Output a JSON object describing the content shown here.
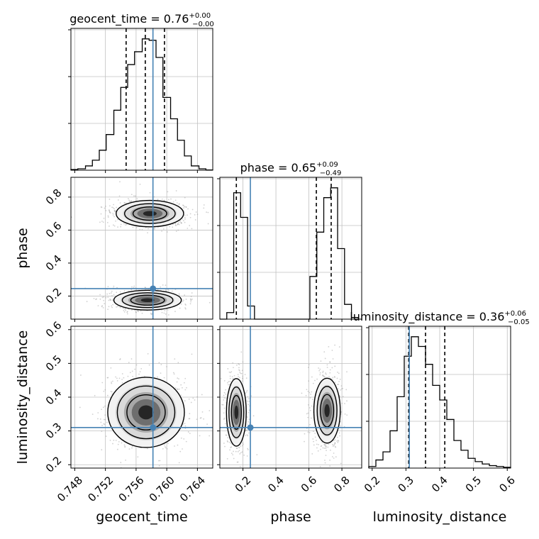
{
  "chart_data": {
    "type": "corner",
    "parameters": [
      "geocent_time",
      "phase",
      "luminosity_distance"
    ],
    "truths": {
      "geocent_time": 0.7582,
      "phase": 0.245,
      "luminosity_distance": 0.31
    },
    "colors": {
      "truth": "#4682b4",
      "hist": "#000000",
      "grid": "#c0c0c0",
      "quantile": "#000000"
    },
    "grid": true,
    "diagonal": [
      {
        "parameter": "geocent_time",
        "title": {
          "prefix": "geocent_time = 0.76",
          "plus": "+0.00",
          "minus": "−0.00"
        },
        "xlim": [
          0.7475,
          0.766
        ],
        "quantiles": [
          0.7547,
          0.7572,
          0.7597
        ],
        "bin_edges": [
          0.7475,
          0.7484,
          0.7494,
          0.7503,
          0.7512,
          0.7521,
          0.7531,
          0.754,
          0.7549,
          0.7558,
          0.7568,
          0.7577,
          0.7586,
          0.7595,
          0.7605,
          0.7614,
          0.7623,
          0.7632,
          0.7642,
          0.7651,
          0.766
        ],
        "counts": [
          0.5,
          1.0,
          3.0,
          7.0,
          14.0,
          25.0,
          42.0,
          58.0,
          74.0,
          83.0,
          92.0,
          91.0,
          79.0,
          51.0,
          36.0,
          21.0,
          10.0,
          3.0,
          1.0,
          0.2
        ]
      },
      {
        "parameter": "phase",
        "title": {
          "prefix": "phase = 0.65",
          "plus": "+0.09",
          "minus": "−0.49"
        },
        "xlim": [
          0.06,
          0.9
        ],
        "quantiles": [
          0.16,
          0.645,
          0.735
        ],
        "bin_edges": [
          0.06,
          0.102,
          0.144,
          0.186,
          0.228,
          0.27,
          0.312,
          0.354,
          0.396,
          0.438,
          0.48,
          0.522,
          0.564,
          0.606,
          0.648,
          0.69,
          0.732,
          0.774,
          0.816,
          0.858,
          0.9
        ],
        "counts": [
          0,
          4.0,
          77.0,
          62.0,
          8.0,
          0,
          0,
          0,
          0,
          0,
          0,
          0,
          0,
          26.0,
          53.0,
          74.0,
          80.0,
          43.0,
          9.0,
          1.0
        ]
      },
      {
        "parameter": "luminosity_distance",
        "title": {
          "prefix": "luminosity_distance = 0.36",
          "plus": "+0.06",
          "minus": "−0.05"
        },
        "xlim": [
          0.19,
          0.61
        ],
        "quantiles": [
          0.308,
          0.358,
          0.415
        ],
        "bin_edges": [
          0.19,
          0.211,
          0.232,
          0.253,
          0.274,
          0.295,
          0.316,
          0.337,
          0.358,
          0.379,
          0.4,
          0.421,
          0.442,
          0.463,
          0.484,
          0.505,
          0.526,
          0.547,
          0.568,
          0.589,
          0.61
        ],
        "counts": [
          1.0,
          5.0,
          10.0,
          23.0,
          44.0,
          69.0,
          81.0,
          75.0,
          64.0,
          51.0,
          42.0,
          30.0,
          17.0,
          11.0,
          6.0,
          4.0,
          2.5,
          1.5,
          1.0,
          0.5
        ]
      }
    ],
    "axes": {
      "geocent_time": {
        "label": "geocent_time",
        "ticks": [
          0.748,
          0.752,
          0.756,
          0.76,
          0.764
        ],
        "tick_labels": [
          "0.748",
          "0.752",
          "0.756",
          "0.760",
          "0.764"
        ]
      },
      "phase": {
        "label": "phase",
        "ticks": [
          0.2,
          0.4,
          0.6,
          0.8
        ],
        "tick_labels": [
          "0.2",
          "0.4",
          "0.6",
          "0.8"
        ]
      },
      "luminosity_distance": {
        "label": "luminosity_distance",
        "ticks": [
          0.2,
          0.3,
          0.4,
          0.5,
          0.6
        ],
        "tick_labels": [
          "0.2",
          "0.3",
          "0.4",
          "0.5",
          "0.6"
        ]
      }
    },
    "offdiagonal": [
      {
        "x": "geocent_time",
        "y": "phase",
        "clusters": [
          {
            "cx": 0.7578,
            "cy": 0.7,
            "sx": 0.0022,
            "sy": 0.04,
            "weight": 1.0
          },
          {
            "cx": 0.7575,
            "cy": 0.175,
            "sx": 0.0022,
            "sy": 0.03,
            "weight": 1.0
          }
        ]
      },
      {
        "x": "geocent_time",
        "y": "luminosity_distance",
        "clusters": [
          {
            "cx": 0.7573,
            "cy": 0.355,
            "sx": 0.0025,
            "sy": 0.052,
            "weight": 1.0
          }
        ]
      },
      {
        "x": "phase",
        "y": "luminosity_distance",
        "clusters": [
          {
            "cx": 0.16,
            "cy": 0.355,
            "sx": 0.03,
            "sy": 0.05,
            "weight": 1.0
          },
          {
            "cx": 0.71,
            "cy": 0.36,
            "sx": 0.04,
            "sy": 0.048,
            "weight": 1.0
          }
        ]
      }
    ]
  }
}
